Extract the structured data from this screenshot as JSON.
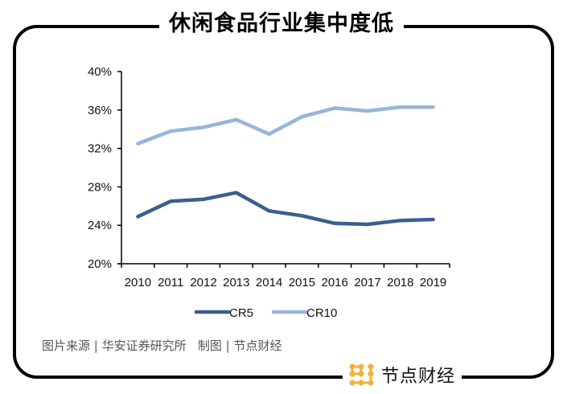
{
  "title": "休闲食品行业集中度低",
  "source_text": "图片来源 | 华安证券研究所   制图 | 节点财经",
  "brand": {
    "name": "节点财经",
    "icon": "node-grid-logo-icon",
    "icon_color": "#F2B13D"
  },
  "colors": {
    "cr5": "#3B5F8E",
    "cr10": "#97B5DA",
    "axis": "#000000",
    "frame": "#000000"
  },
  "legend": [
    {
      "label": "CR5",
      "color": "#3B5F8E"
    },
    {
      "label": "CR10",
      "color": "#97B5DA"
    }
  ],
  "y_ticks": [
    "40%",
    "36%",
    "32%",
    "28%",
    "24%",
    "20%"
  ],
  "chart_data": {
    "type": "line",
    "title": "休闲食品行业集中度低",
    "xlabel": "",
    "ylabel": "",
    "categories": [
      "2010",
      "2011",
      "2012",
      "2013",
      "2014",
      "2015",
      "2016",
      "2017",
      "2018",
      "2019"
    ],
    "series": [
      {
        "name": "CR5",
        "color": "#3B5F8E",
        "values": [
          24.9,
          26.5,
          26.7,
          27.4,
          25.5,
          25.0,
          24.2,
          24.1,
          24.5,
          24.6
        ]
      },
      {
        "name": "CR10",
        "color": "#97B5DA",
        "values": [
          32.5,
          33.8,
          34.2,
          35.0,
          33.5,
          35.3,
          36.2,
          35.9,
          36.3,
          36.3
        ]
      }
    ],
    "ylim": [
      20,
      40
    ],
    "y_ticks": [
      20,
      24,
      28,
      32,
      36,
      40
    ],
    "y_format": "percent",
    "grid": false,
    "legend_position": "bottom"
  }
}
